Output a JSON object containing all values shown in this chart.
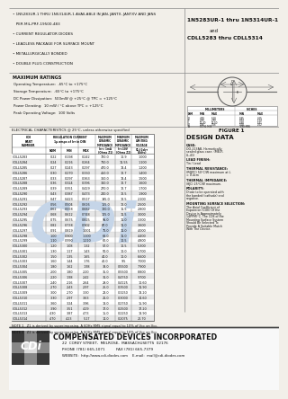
{
  "bg_color": "#f2efe9",
  "title_right_lines": [
    {
      "text": "1N5283UR-1 thru 1N5314UR-1",
      "bold": true,
      "fontsize": 4.5
    },
    {
      "text": "and",
      "bold": false,
      "fontsize": 4.0
    },
    {
      "text": "CDLL5283 thru CDLL5314",
      "bold": true,
      "fontsize": 4.5
    }
  ],
  "bullets": [
    "• 1N5283UR-1 THRU 1N5314UR-1 AVAILABLE IN JAN, JANTX, JANTXV AND JANS",
    "   PER MIL-PRF-19500-483",
    "• CURRENT REGULATOR DIODES",
    "• LEADLESS PACKAGE FOR SURFACE MOUNT",
    "• METALLURGICALLY BONDED",
    "• DOUBLE PLUG CONSTRUCTION"
  ],
  "max_ratings_title": "MAXIMUM RATINGS",
  "max_ratings": [
    "Operating Temperature:  -65°C to +175°C",
    "Storage Temperature:  -65°C to +175°C",
    "DC Power Dissipation:  500mW @ +25°C @ TPC = +125°C",
    "Power Derating:  10 mW / °C above TPC = +125°C",
    "Peak Operating Voltage:  100 Volts"
  ],
  "elec_char_title": "ELECTRICAL CHARACTERISTICS @ 25°C, unless otherwise specified",
  "table_rows": [
    [
      "CDLL5283",
      "0.22",
      "0.198",
      "0.242",
      "720.0",
      "10.9",
      "1.000"
    ],
    [
      "CDLL5284",
      "0.24",
      "0.216",
      "0.264",
      "710.0",
      "11.55",
      "1.100"
    ],
    [
      "CDLL5285",
      "0.27",
      "0.243",
      "0.297",
      "470.0",
      "13.4",
      "1.200"
    ],
    [
      "CDLL5286",
      "0.30",
      "0.270",
      "0.330",
      "450.0",
      "12.7",
      "1.400"
    ],
    [
      "CDLL5287",
      "0.33",
      "0.297",
      "0.363",
      "360.0",
      "13.4",
      "1.500"
    ],
    [
      "CDLL5288",
      "0.36",
      "0.324",
      "0.396",
      "310.0",
      "12.7",
      "1.600"
    ],
    [
      "CDLL5289",
      "0.39",
      "0.351",
      "0.429",
      "270.0",
      "12.7",
      "1.700"
    ],
    [
      "CDLL5290",
      "0.43",
      "0.387",
      "0.473",
      "240.0",
      "12.5",
      "1.900"
    ],
    [
      "CDLL5291",
      "0.47",
      "0.423",
      "0.517",
      "195.0",
      "12.5",
      "2.100"
    ],
    [
      "CDLL5292",
      "0.56",
      "0.504",
      "0.616",
      "155.0",
      "12.0",
      "2.500"
    ],
    [
      "CDLL5293",
      "0.62",
      "0.558",
      "0.682",
      "120.0",
      "11.5",
      "2.800"
    ],
    [
      "CDLL5294",
      "0.68",
      "0.612",
      "0.748",
      "105.0",
      "11.5",
      "3.000"
    ],
    [
      "CDLL5295",
      "0.75",
      "0.675",
      "0.825",
      "95.0",
      "11.0",
      "3.300"
    ],
    [
      "CDLL5296",
      "0.82",
      "0.738",
      "0.902",
      "87.0",
      "11.0",
      "3.600"
    ],
    [
      "CDLL5297",
      "0.91",
      "0.819",
      "1.001",
      "75.0",
      "11.0",
      "4.000"
    ],
    [
      "CDLL5298",
      "1.00",
      "0.900",
      "1.100",
      "68.0",
      "11.0",
      "4.400"
    ],
    [
      "CDLL5299",
      "1.10",
      "0.990",
      "1.210",
      "62.0",
      "10.5",
      "4.800"
    ],
    [
      "CDLL5300",
      "1.20",
      "1.08",
      "1.32",
      "57.0",
      "10.5",
      "5.300"
    ],
    [
      "CDLL5301",
      "1.30",
      "1.17",
      "1.43",
      "50.0",
      "10.0",
      "5.700"
    ],
    [
      "CDLL5302",
      "1.50",
      "1.35",
      "1.65",
      "44.0",
      "10.0",
      "6.600"
    ],
    [
      "CDLL5303",
      "1.60",
      "1.44",
      "1.76",
      "40.0",
      "9.5",
      "7.000"
    ],
    [
      "CDLL5304",
      "1.80",
      "1.62",
      "1.98",
      "38.0",
      "0.5500",
      "7.900"
    ],
    [
      "CDLL5305",
      "2.00",
      "1.80",
      "2.20",
      "35.0",
      "0.5500",
      "8.800"
    ],
    [
      "CDLL5306",
      "2.20",
      "1.98",
      "2.42",
      "31.0",
      "0.4750",
      "9.700"
    ],
    [
      "CDLL5307",
      "2.40",
      "2.16",
      "2.64",
      "29.0",
      "0.4125",
      "10.60"
    ],
    [
      "CDLL5308",
      "2.70",
      "2.43",
      "2.97",
      "26.0",
      "0.3500",
      "11.90"
    ],
    [
      "CDLL5309",
      "3.00",
      "2.70",
      "3.30",
      "23.0",
      "0.3250",
      "13.20"
    ],
    [
      "CDLL5310",
      "3.30",
      "2.97",
      "3.63",
      "21.0",
      "0.3000",
      "14.60"
    ],
    [
      "CDLL5311",
      "3.60",
      "3.24",
      "3.96",
      "18.0",
      "0.2750",
      "15.90"
    ],
    [
      "CDLL5312",
      "3.90",
      "3.51",
      "4.29",
      "17.0",
      "0.2500",
      "17.20"
    ],
    [
      "CDLL5313",
      "4.30",
      "3.87",
      "4.73",
      "15.0",
      "0.2250",
      "18.90"
    ],
    [
      "CDLL5314",
      "4.70",
      "4.23",
      "5.17",
      "14.0",
      "0.2075",
      "20.70"
    ]
  ],
  "note1": "NOTE 1   Z1 is derived by superimposing. A 60Hz RMS signal equal to 10% of Vcc on Vcc.",
  "note2": "NOTE 2   Z2 is derived by superimposing. A 60Hz RMS signal equal to 10% of Vcc on Vcc.",
  "figure_title": "FIGURE 1",
  "design_data_title": "DESIGN DATA",
  "design_data": [
    [
      "CASE:",
      "DO-213AB, Hermetically sealed glass case. (MELF, LL-41)"
    ],
    [
      "LEAD FINISH:",
      "Tin / Lead"
    ],
    [
      "THERMAL RESISTANCE:",
      "(RθJPC)\n50°C/W maximum at L = 0.4cm"
    ],
    [
      "THERMAL IMPEDANCE:",
      "(θJC) 25°C/W maximum."
    ],
    [
      "POLARITY:",
      "Diode to be operated with the banded (cathode) end negative."
    ],
    [
      "MOUNTING SURFACE SELECTION:",
      "The Axial Coefficient of Expansion (COE) Of the Device is Approximately 14PPM/°C. The COE of the Mounting Surface System Should Be Selected To Provide A Suitable Match With The Device."
    ]
  ],
  "mm_table_rows": [
    [
      "D",
      "4.70",
      "5.20",
      ".185",
      ".205"
    ],
    [
      "E",
      "2.40",
      "2.90",
      ".094",
      ".114"
    ],
    [
      "L",
      "12.40",
      "13.50",
      ".488",
      ".531"
    ],
    [
      "d",
      "0.46",
      "0.56",
      ".018",
      ".022"
    ],
    [
      "A",
      "10.92 MIN",
      "",
      ".430 MIN",
      ""
    ]
  ],
  "company_name": "COMPENSATED DEVICES INCORPORATED",
  "company_address": "22  COREY STREET,  MELROSE,  MASSACHUSETTS  02176",
  "company_phone": "PHONE (781) 665-1071",
  "company_fax": "FAX (781) 665-7379",
  "company_website": "WEBSITE:  http://www.cdi-diodes.com",
  "company_email": "E-mail:  mail@cdi-diodes.com"
}
